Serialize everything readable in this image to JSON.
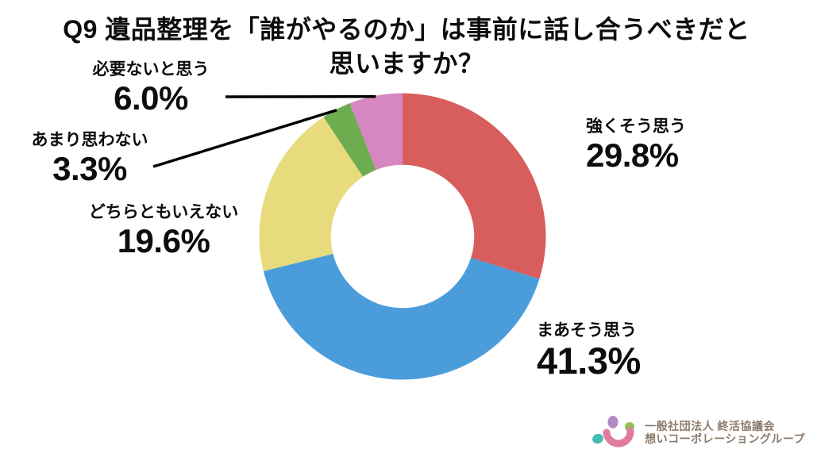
{
  "title": {
    "line1": "Q9 遺品整理を「誰がやるのか」は事前に話し合うべきだと",
    "line2": "思いますか？"
  },
  "chart_data": {
    "type": "pie",
    "subtype": "donut",
    "title": "Q9 遺品整理を「誰がやるのか」は事前に話し合うべきだと思いますか？",
    "unit": "%",
    "start_angle_deg": 0,
    "direction": "clockwise",
    "inner_radius_ratio": 0.5,
    "legend_position": "labels-around-chart",
    "slices": [
      {
        "label": "強くそう思う",
        "value": 29.8,
        "display": "29.8%",
        "color": "#D85D5D"
      },
      {
        "label": "まあそう思う",
        "value": 41.3,
        "display": "41.3%",
        "color": "#4A9CDB"
      },
      {
        "label": "どちらともいえない",
        "value": 19.6,
        "display": "19.6%",
        "color": "#E7DB7D"
      },
      {
        "label": "あまり思わない",
        "value": 3.3,
        "display": "3.3%",
        "color": "#6FAC50"
      },
      {
        "label": "必要ないと思う",
        "value": 6.0,
        "display": "6.0%",
        "color": "#D687C1"
      }
    ],
    "leader_line_color": "#000000"
  },
  "footer": {
    "org_line1": "一般社団法人 終活協議会",
    "org_line2": "想いコーポレーショングループ",
    "text_color": "#8C7A6B",
    "logo_colors": {
      "purple": "#B38BC6",
      "green": "#93C156",
      "teal": "#45BCB3",
      "pink": "#E2799F"
    }
  }
}
